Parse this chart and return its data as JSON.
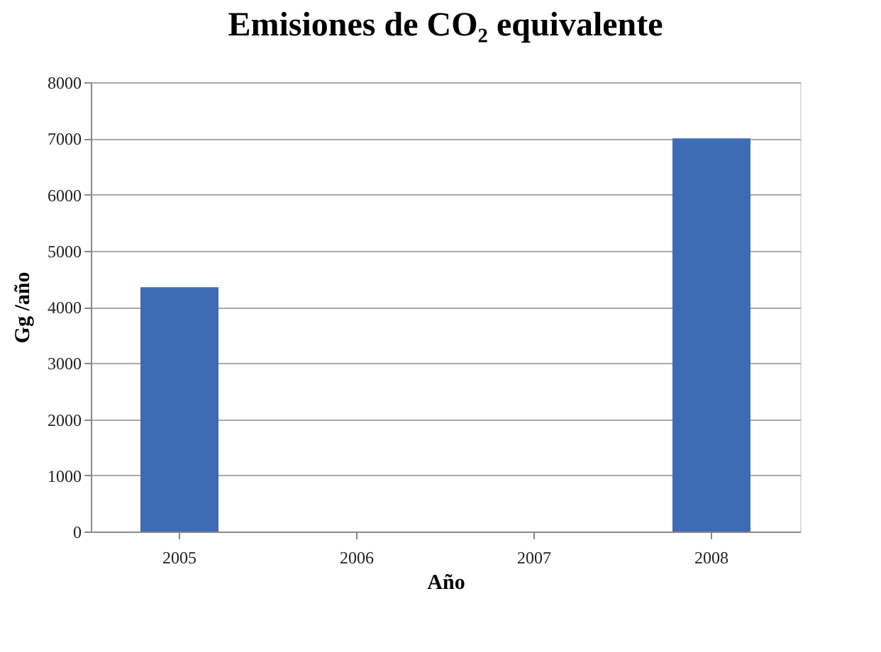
{
  "chart_data": {
    "type": "bar",
    "title": "Emisiones de CO₂ equivalente",
    "xlabel": "Año",
    "ylabel": "Gg /año",
    "categories": [
      "2005",
      "2006",
      "2007",
      "2008"
    ],
    "values": [
      4350,
      null,
      null,
      7000
    ],
    "color": "#3e6cb4",
    "ylim": [
      0,
      8000
    ],
    "yticks": [
      0,
      1000,
      2000,
      3000,
      4000,
      5000,
      6000,
      7000,
      8000
    ],
    "grid": "y"
  }
}
